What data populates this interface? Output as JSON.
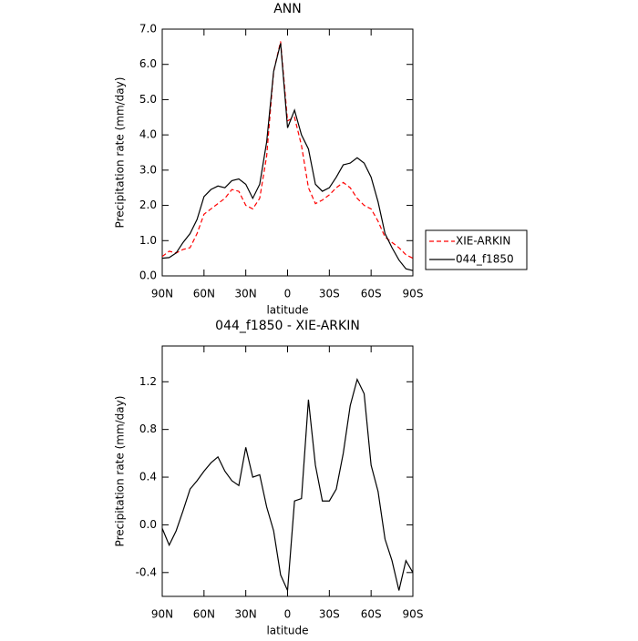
{
  "chart_data": [
    {
      "type": "line",
      "title": "ANN",
      "x_label": "latitude",
      "y_label": "Precipitation rate (mm/day)",
      "x": [
        90,
        85,
        80,
        75,
        70,
        65,
        60,
        55,
        50,
        45,
        40,
        35,
        30,
        25,
        20,
        15,
        10,
        5,
        0,
        -5,
        -10,
        -15,
        -20,
        -25,
        -30,
        -35,
        -40,
        -45,
        -50,
        -55,
        -60,
        -65,
        -70,
        -75,
        -80,
        -85,
        -90
      ],
      "xlim": [
        90,
        -90
      ],
      "xticks": [
        {
          "value": 90,
          "label": "90N"
        },
        {
          "value": 60,
          "label": "60N"
        },
        {
          "value": 30,
          "label": "30N"
        },
        0,
        {
          "value": -30,
          "label": "30S"
        },
        {
          "value": -60,
          "label": "60S"
        },
        {
          "value": -90,
          "label": "90S"
        }
      ],
      "ylim": [
        0,
        7
      ],
      "yticks": [
        {
          "value": 0,
          "label": "0.0"
        },
        {
          "value": 1,
          "label": "1.0"
        },
        {
          "value": 2,
          "label": "2.0"
        },
        {
          "value": 3,
          "label": "3.0"
        },
        {
          "value": 4,
          "label": "4.0"
        },
        {
          "value": 5,
          "label": "5.0"
        },
        {
          "value": 6,
          "label": "6.0"
        },
        {
          "value": 7,
          "label": "7.0"
        }
      ],
      "legend": "right",
      "series": [
        {
          "name": "XIE-ARKIN",
          "color": "#ff0000",
          "linestyle": "dashed",
          "values": [
            0.55,
            0.7,
            0.65,
            0.75,
            0.8,
            1.2,
            1.75,
            1.9,
            2.05,
            2.2,
            2.45,
            2.4,
            2.0,
            1.9,
            2.2,
            3.4,
            5.8,
            6.65,
            4.4,
            4.5,
            3.7,
            2.5,
            2.05,
            2.15,
            2.3,
            2.5,
            2.65,
            2.5,
            2.2,
            2.0,
            1.9,
            1.55,
            1.1,
            0.95,
            0.8,
            0.6,
            0.5
          ]
        },
        {
          "name": "044_f1850",
          "color": "#000000",
          "linestyle": "solid",
          "values": [
            0.5,
            0.52,
            0.65,
            0.95,
            1.2,
            1.6,
            2.25,
            2.45,
            2.55,
            2.5,
            2.7,
            2.75,
            2.6,
            2.2,
            2.6,
            3.8,
            5.8,
            6.6,
            4.2,
            4.7,
            4.0,
            3.6,
            2.6,
            2.4,
            2.5,
            2.8,
            3.15,
            3.2,
            3.35,
            3.2,
            2.8,
            2.1,
            1.2,
            0.8,
            0.45,
            0.2,
            0.15
          ]
        }
      ]
    },
    {
      "type": "line",
      "title": "044_f1850 - XIE-ARKIN",
      "x_label": "latitude",
      "y_label": "Precipitation rate (mm/day)",
      "x": [
        90,
        85,
        80,
        75,
        70,
        65,
        60,
        55,
        50,
        45,
        40,
        35,
        30,
        25,
        20,
        15,
        10,
        5,
        0,
        -5,
        -10,
        -15,
        -20,
        -25,
        -30,
        -35,
        -40,
        -45,
        -50,
        -55,
        -60,
        -65,
        -70,
        -75,
        -80,
        -85,
        -90
      ],
      "xlim": [
        90,
        -90
      ],
      "xticks": [
        {
          "value": 90,
          "label": "90N"
        },
        {
          "value": 60,
          "label": "60N"
        },
        {
          "value": 30,
          "label": "30N"
        },
        0,
        {
          "value": -30,
          "label": "30S"
        },
        {
          "value": -60,
          "label": "60S"
        },
        {
          "value": -90,
          "label": "90S"
        }
      ],
      "ylim": [
        -0.6,
        1.5
      ],
      "yticks": [
        -0.4,
        {
          "value": 0,
          "label": "0.0"
        },
        0.4,
        0.8,
        1.2
      ],
      "series": [
        {
          "name": "044_f1850 - XIE-ARKIN",
          "color": "#000000",
          "linestyle": "solid",
          "values": [
            -0.03,
            -0.17,
            -0.05,
            0.12,
            0.3,
            0.37,
            0.45,
            0.52,
            0.57,
            0.45,
            0.37,
            0.33,
            0.65,
            0.4,
            0.42,
            0.15,
            -0.05,
            -0.42,
            -0.55,
            0.2,
            0.22,
            1.05,
            0.5,
            0.2,
            0.2,
            0.3,
            0.6,
            1.0,
            1.22,
            1.1,
            0.5,
            0.28,
            -0.12,
            -0.3,
            -0.55,
            -0.3,
            -0.4
          ]
        }
      ]
    }
  ]
}
